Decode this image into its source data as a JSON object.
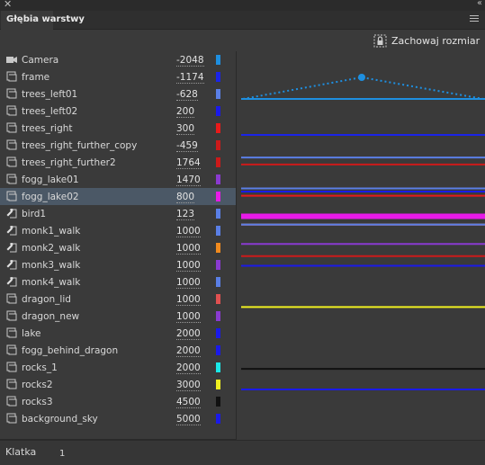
{
  "window": {
    "close_glyph": "✕",
    "collapse_glyph": "‹‹"
  },
  "panel": {
    "tab_title": "Głębia warstwy",
    "menu_icon": "hamburger-menu-icon"
  },
  "toolbar": {
    "keep_size_label": "Zachowaj rozmiar",
    "keep_size_icon": "lock-resize-icon"
  },
  "layers": [
    {
      "name": "Camera",
      "depth": "-2048",
      "color": "#1e8fe0",
      "icon": "camera-icon",
      "selected": false
    },
    {
      "name": "frame",
      "depth": "-1174",
      "color": "#1a24e8",
      "icon": "layer-icon",
      "selected": false
    },
    {
      "name": "trees_left01",
      "depth": "-628",
      "color": "#5a7fe6",
      "icon": "layer-icon",
      "selected": false
    },
    {
      "name": "trees_left02",
      "depth": "200",
      "color": "#1a1ae8",
      "icon": "layer-icon",
      "selected": false
    },
    {
      "name": "trees_right",
      "depth": "300",
      "color": "#e81a1a",
      "icon": "layer-icon",
      "selected": false
    },
    {
      "name": "trees_right_further_copy",
      "depth": "-459",
      "color": "#cc1a1a",
      "icon": "layer-icon",
      "selected": false
    },
    {
      "name": "trees_right_further2",
      "depth": "1764",
      "color": "#cc1a1a",
      "icon": "layer-icon",
      "selected": false
    },
    {
      "name": "fogg_lake01",
      "depth": "1470",
      "color": "#8a3ad0",
      "icon": "layer-icon",
      "selected": false
    },
    {
      "name": "fogg_lake02",
      "depth": "800",
      "color": "#e81ae8",
      "icon": "layer-icon",
      "selected": true
    },
    {
      "name": "bird1",
      "depth": "123",
      "color": "#5a7fe6",
      "icon": "symbol-icon",
      "selected": false
    },
    {
      "name": "monk1_walk",
      "depth": "1000",
      "color": "#5a7fe6",
      "icon": "symbol-icon",
      "selected": false
    },
    {
      "name": "monk2_walk",
      "depth": "1000",
      "color": "#f08a1e",
      "icon": "symbol-icon",
      "selected": false
    },
    {
      "name": "monk3_walk",
      "depth": "1000",
      "color": "#8a3ad0",
      "icon": "symbol-icon",
      "selected": false
    },
    {
      "name": "monk4_walk",
      "depth": "1000",
      "color": "#5a7fe6",
      "icon": "symbol-icon",
      "selected": false
    },
    {
      "name": "dragon_lid",
      "depth": "1000",
      "color": "#e05050",
      "icon": "layer-icon",
      "selected": false
    },
    {
      "name": "dragon_new",
      "depth": "1000",
      "color": "#8a3ad0",
      "icon": "layer-icon",
      "selected": false
    },
    {
      "name": "lake",
      "depth": "2000",
      "color": "#1a1ae8",
      "icon": "layer-icon",
      "selected": false
    },
    {
      "name": "fogg_behind_dragon",
      "depth": "2000",
      "color": "#1a1ae8",
      "icon": "layer-icon",
      "selected": false
    },
    {
      "name": "rocks_1",
      "depth": "2000",
      "color": "#1ae8e8",
      "icon": "layer-icon",
      "selected": false
    },
    {
      "name": "rocks2",
      "depth": "3000",
      "color": "#f0f020",
      "icon": "layer-icon",
      "selected": false
    },
    {
      "name": "rocks3",
      "depth": "4500",
      "color": "#111111",
      "icon": "layer-icon",
      "selected": false
    },
    {
      "name": "background_sky",
      "depth": "5000",
      "color": "#1a1ae8",
      "icon": "layer-icon",
      "selected": false
    }
  ],
  "footer": {
    "frame_label": "Klatka",
    "frame_value": "1"
  }
}
